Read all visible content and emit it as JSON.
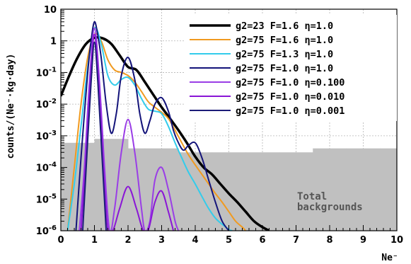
{
  "chart_data": {
    "type": "line",
    "xlabel": "Ne⁻",
    "ylabel": "counts/(Ne⁻·kg·day)",
    "xlim": [
      0,
      10
    ],
    "ylim_log10": [
      -6,
      1
    ],
    "yscale": "log",
    "grid": true,
    "legend_placement": "top-right",
    "x_ticks": [
      "0",
      "1",
      "2",
      "3",
      "4",
      "5",
      "6",
      "7",
      "8",
      "9",
      "10"
    ],
    "y_ticks": [
      {
        "base": "10",
        "exp": "-6"
      },
      {
        "base": "10",
        "exp": "-5"
      },
      {
        "base": "10",
        "exp": "-4"
      },
      {
        "base": "10",
        "exp": "-3"
      },
      {
        "base": "10",
        "exp": "-2"
      },
      {
        "base": "10",
        "exp": "-1"
      },
      {
        "base": "1",
        "exp": ""
      },
      {
        "base": "10",
        "exp": ""
      }
    ],
    "background": {
      "name": "Total backgrounds",
      "label_lines": [
        "Total",
        "backgrounds"
      ],
      "color": "#c0c0c0",
      "bins": [
        {
          "x0": 0,
          "x1": 0.5,
          "y": 0.0006
        },
        {
          "x0": 0.5,
          "x1": 1.0,
          "y": 0.0006
        },
        {
          "x0": 1.0,
          "x1": 1.5,
          "y": 0.0008
        },
        {
          "x0": 1.5,
          "x1": 2.0,
          "y": 0.0008
        },
        {
          "x0": 2.0,
          "x1": 2.5,
          "y": 0.0004
        },
        {
          "x0": 2.5,
          "x1": 3.0,
          "y": 0.0004
        },
        {
          "x0": 3.0,
          "x1": 3.5,
          "y": 0.0004
        },
        {
          "x0": 3.5,
          "x1": 4.0,
          "y": 0.0003
        },
        {
          "x0": 4.0,
          "x1": 4.5,
          "y": 0.0003
        },
        {
          "x0": 4.5,
          "x1": 5.0,
          "y": 0.0003
        },
        {
          "x0": 5.0,
          "x1": 5.5,
          "y": 0.0003
        },
        {
          "x0": 5.5,
          "x1": 6.0,
          "y": 0.0003
        },
        {
          "x0": 6.0,
          "x1": 6.5,
          "y": 0.0003
        },
        {
          "x0": 6.5,
          "x1": 7.0,
          "y": 0.0003
        },
        {
          "x0": 7.0,
          "x1": 7.5,
          "y": 0.0003
        },
        {
          "x0": 7.5,
          "x1": 8.0,
          "y": 0.0004
        },
        {
          "x0": 8.0,
          "x1": 8.5,
          "y": 0.0004
        },
        {
          "x0": 8.5,
          "x1": 9.0,
          "y": 0.0004
        },
        {
          "x0": 9.0,
          "x1": 9.5,
          "y": 0.0004
        },
        {
          "x0": 9.5,
          "x1": 10.0,
          "y": 0.0004
        }
      ]
    },
    "series": [
      {
        "name": "g2=23   F=1.6   η=1.0",
        "color": "#000000",
        "width": 3.5,
        "x": [
          0,
          0.25,
          0.5,
          0.75,
          1.0,
          1.25,
          1.5,
          1.75,
          2.0,
          2.25,
          2.5,
          2.75,
          3.0,
          3.25,
          3.5,
          3.75,
          4.0,
          4.25,
          4.5,
          4.75,
          5.0,
          5.25,
          5.5,
          5.75,
          6.0,
          6.2
        ],
        "y": [
          0.018,
          0.08,
          0.3,
          0.8,
          1.25,
          1.2,
          0.8,
          0.35,
          0.15,
          0.12,
          0.05,
          0.02,
          0.008,
          0.0035,
          0.0015,
          0.0006,
          0.00022,
          0.0001,
          6e-05,
          3e-05,
          1.5e-05,
          8e-06,
          4e-06,
          2e-06,
          1.3e-06,
          1e-06
        ]
      },
      {
        "name": "g2=75   F=1.6   η=1.0",
        "color": "#f09a20",
        "width": 2,
        "x": [
          0.2,
          0.4,
          0.6,
          0.8,
          1.0,
          1.2,
          1.4,
          1.6,
          1.8,
          2.0,
          2.2,
          2.4,
          2.6,
          2.8,
          3.0,
          3.2,
          3.4,
          3.6,
          3.8,
          4.0,
          4.2,
          4.4,
          4.6,
          4.8,
          5.0,
          5.2,
          5.4,
          5.5
        ],
        "y": [
          1e-06,
          0.0001,
          0.01,
          0.3,
          1.6,
          1.0,
          0.25,
          0.12,
          0.1,
          0.08,
          0.05,
          0.025,
          0.012,
          0.008,
          0.0055,
          0.0035,
          0.0015,
          0.0006,
          0.00025,
          0.00012,
          6e-05,
          3e-05,
          1.5e-05,
          8e-06,
          4e-06,
          2e-06,
          1.3e-06,
          1e-06
        ]
      },
      {
        "name": "g2=75   F=1.3   η=1.0",
        "color": "#33cceb",
        "width": 2,
        "x": [
          0.2,
          0.4,
          0.6,
          0.8,
          1.0,
          1.2,
          1.4,
          1.6,
          1.8,
          2.0,
          2.2,
          2.4,
          2.6,
          2.8,
          3.0,
          3.2,
          3.4,
          3.6,
          3.8,
          4.0,
          4.2,
          4.4,
          4.6,
          4.8,
          5.0,
          5.1
        ],
        "y": [
          1e-06,
          3e-05,
          0.002,
          0.15,
          2.5,
          0.8,
          0.08,
          0.04,
          0.06,
          0.07,
          0.04,
          0.015,
          0.007,
          0.006,
          0.005,
          0.002,
          0.0006,
          0.0002,
          7e-05,
          3e-05,
          1.2e-05,
          5e-06,
          2.5e-06,
          1.6e-06,
          1.1e-06,
          1e-06
        ]
      },
      {
        "name": "g2=75   F=1.0   η=1.0",
        "color": "#14147a",
        "width": 2,
        "x": [
          0.45,
          0.6,
          0.8,
          0.9,
          1.0,
          1.1,
          1.2,
          1.35,
          1.5,
          1.65,
          1.8,
          2.0,
          2.2,
          2.35,
          2.5,
          2.65,
          2.8,
          3.0,
          3.2,
          3.35,
          3.5,
          3.65,
          3.8,
          4.0,
          4.2,
          4.4,
          4.6,
          4.8,
          5.0
        ],
        "y": [
          1e-06,
          0.0002,
          0.1,
          1.0,
          4.0,
          1.5,
          0.3,
          0.01,
          0.0012,
          0.005,
          0.08,
          0.3,
          0.06,
          0.005,
          0.0012,
          0.003,
          0.01,
          0.016,
          0.006,
          0.0015,
          0.0006,
          0.00035,
          0.0005,
          0.0006,
          0.0002,
          4e-05,
          8e-06,
          2e-06,
          1e-06
        ]
      },
      {
        "name": "g2=75   F=1.0   η=0.100",
        "color": "#9a3ee6",
        "width": 2,
        "x": [
          0.55,
          0.7,
          0.85,
          1.0,
          1.15,
          1.3,
          1.45,
          1.6,
          1.8,
          2.0,
          2.2,
          2.4,
          2.5,
          2.65,
          2.8,
          3.0,
          3.2,
          3.4,
          3.5
        ],
        "y": [
          1e-06,
          0.0001,
          0.05,
          2.5,
          0.05,
          0.0001,
          1e-06,
          5e-06,
          0.0003,
          0.0033,
          0.0003,
          5e-06,
          1e-06,
          2e-06,
          4e-05,
          0.0001,
          2e-05,
          2e-06,
          1e-06
        ]
      },
      {
        "name": "g2=75   F=1.0   η=0.010",
        "color": "#8a16d6",
        "width": 2,
        "x": [
          0.6,
          0.75,
          0.88,
          1.0,
          1.12,
          1.25,
          1.4,
          1.55,
          1.75,
          2.0,
          2.25,
          2.45,
          2.6,
          2.8,
          3.0,
          3.2,
          3.35
        ],
        "y": [
          1e-06,
          0.0002,
          0.05,
          1.6,
          0.05,
          0.0002,
          1e-06,
          1e-06,
          5e-06,
          2.5e-05,
          5e-06,
          1e-06,
          1e-06,
          8e-06,
          1.8e-05,
          4e-06,
          1e-06
        ]
      },
      {
        "name": "g2=75   F=1.0   η=0.001",
        "color": "#1c1c78",
        "width": 2,
        "x": [
          0.65,
          0.78,
          0.9,
          1.0,
          1.1,
          1.22,
          1.35
        ],
        "y": [
          1e-06,
          0.0003,
          0.05,
          0.9,
          0.05,
          0.0003,
          1e-06
        ]
      }
    ]
  }
}
